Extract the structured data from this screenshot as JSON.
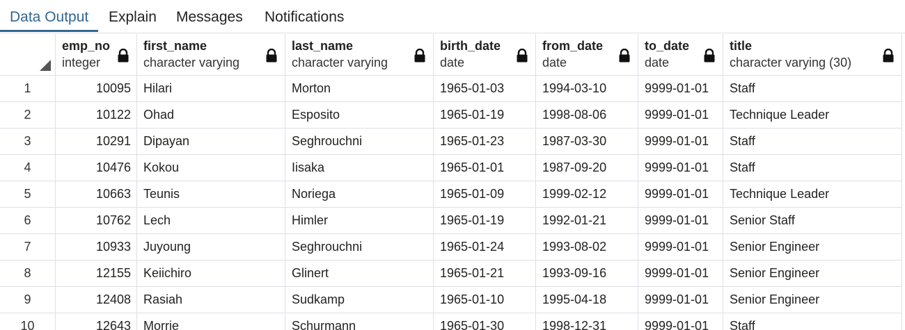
{
  "tabs": [
    {
      "label": "Data Output",
      "active": true
    },
    {
      "label": "Explain",
      "active": false
    },
    {
      "label": "Messages",
      "active": false
    },
    {
      "label": "Notifications",
      "active": false
    }
  ],
  "colors": {
    "accent": "#326690",
    "border": "#dde0e6",
    "text": "#222222"
  },
  "grid": {
    "columns": [
      {
        "name": "emp_no",
        "type": "integer",
        "icon": "lock-icon"
      },
      {
        "name": "first_name",
        "type": "character varying",
        "icon": "lock-icon"
      },
      {
        "name": "last_name",
        "type": "character varying",
        "icon": "lock-icon"
      },
      {
        "name": "birth_date",
        "type": "date",
        "icon": "lock-icon"
      },
      {
        "name": "from_date",
        "type": "date",
        "icon": "lock-icon"
      },
      {
        "name": "to_date",
        "type": "date",
        "icon": "lock-icon"
      },
      {
        "name": "title",
        "type": "character varying (30)",
        "icon": "lock-icon"
      }
    ],
    "rows": [
      {
        "n": "1",
        "cells": [
          "10095",
          "Hilari",
          "Morton",
          "1965-01-03",
          "1994-03-10",
          "9999-01-01",
          "Staff"
        ]
      },
      {
        "n": "2",
        "cells": [
          "10122",
          "Ohad",
          "Esposito",
          "1965-01-19",
          "1998-08-06",
          "9999-01-01",
          "Technique Leader"
        ]
      },
      {
        "n": "3",
        "cells": [
          "10291",
          "Dipayan",
          "Seghrouchni",
          "1965-01-23",
          "1987-03-30",
          "9999-01-01",
          "Staff"
        ]
      },
      {
        "n": "4",
        "cells": [
          "10476",
          "Kokou",
          "Iisaka",
          "1965-01-01",
          "1987-09-20",
          "9999-01-01",
          "Staff"
        ]
      },
      {
        "n": "5",
        "cells": [
          "10663",
          "Teunis",
          "Noriega",
          "1965-01-09",
          "1999-02-12",
          "9999-01-01",
          "Technique Leader"
        ]
      },
      {
        "n": "6",
        "cells": [
          "10762",
          "Lech",
          "Himler",
          "1965-01-19",
          "1992-01-21",
          "9999-01-01",
          "Senior Staff"
        ]
      },
      {
        "n": "7",
        "cells": [
          "10933",
          "Juyoung",
          "Seghrouchni",
          "1965-01-24",
          "1993-08-02",
          "9999-01-01",
          "Senior Engineer"
        ]
      },
      {
        "n": "8",
        "cells": [
          "12155",
          "Keiichiro",
          "Glinert",
          "1965-01-21",
          "1993-09-16",
          "9999-01-01",
          "Senior Engineer"
        ]
      },
      {
        "n": "9",
        "cells": [
          "12408",
          "Rasiah",
          "Sudkamp",
          "1965-01-10",
          "1995-04-18",
          "9999-01-01",
          "Senior Engineer"
        ]
      },
      {
        "n": "10",
        "cells": [
          "12643",
          "Morrie",
          "Schurmann",
          "1965-01-30",
          "1998-12-31",
          "9999-01-01",
          "Staff"
        ]
      }
    ]
  }
}
